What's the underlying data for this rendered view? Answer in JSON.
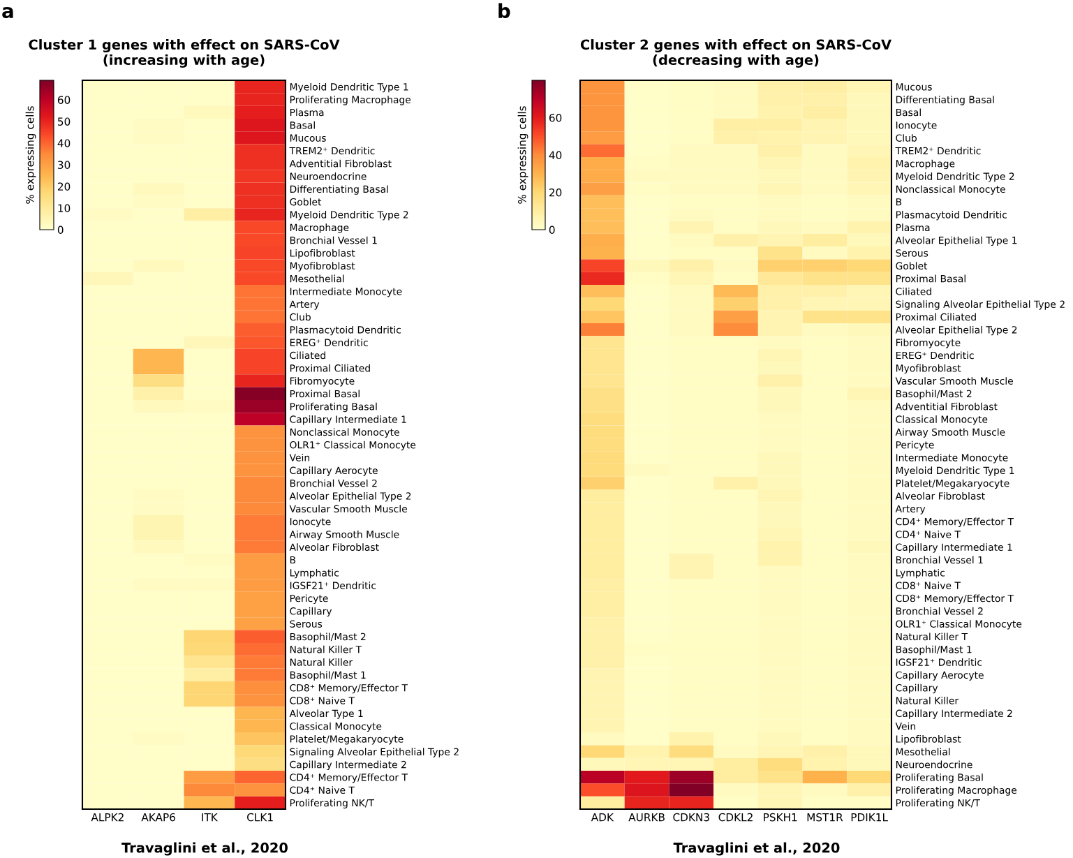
{
  "chart_data": [
    {
      "type": "heatmap",
      "title": "Cluster 1 genes with effect on SARS-CoV\n(increasing with age)",
      "clabel": "% expressing cells",
      "clim": [
        0,
        69
      ],
      "cticks": [
        0,
        10,
        20,
        30,
        40,
        50,
        60
      ],
      "annotations": [
        "a",
        "Travaglini et al., 2020"
      ],
      "categories": [
        "ALPK2",
        "AKAP6",
        "ITK",
        "CLK1"
      ],
      "y_categories": [
        "Myeloid Dendritic Type 1",
        "Proliferating Macrophage",
        "Plasma",
        "Basal",
        "Mucous",
        "TREM2⁺ Dendritic",
        "Adventitial Fibroblast",
        "Neuroendocrine",
        "Differentiating Basal",
        "Goblet",
        "Myeloid Dendritic Type 2",
        "Macrophage",
        "Bronchial Vessel 1",
        "Lipofibroblast",
        "Myofibroblast",
        "Mesothelial",
        "Intermediate Monocyte",
        "Artery",
        "Club",
        "Plasmacytoid Dendritic",
        "EREG⁺ Dendritic",
        "Ciliated",
        "Proximal Ciliated",
        "Fibromyocyte",
        "Proximal Basal",
        "Proliferating Basal",
        "Capillary Intermediate 1",
        "Nonclassical Monocyte",
        "OLR1⁺ Classical Monocyte",
        "Vein",
        "Capillary Aerocyte",
        "Bronchial Vessel 2",
        "Alveolar Epithelial Type 2",
        "Vascular Smooth Muscle",
        "Ionocyte",
        "Airway Smooth Muscle",
        "Alveolar Fibroblast",
        "B",
        "Lymphatic",
        "IGSF21⁺ Dendritic",
        "Pericyte",
        "Capillary",
        "Serous",
        "Basophil/Mast 2",
        "Natural Killer T",
        "Natural Killer",
        "Basophil/Mast 1",
        "CD8⁺ Memory/Effector T",
        "CD8⁺ Naive T",
        "Alveolar Type 1",
        "Classical Monocyte",
        "Platelet/Megakaryocyte",
        "Signaling Alveolar Epithelial Type 2",
        "Capillary Intermediate 2",
        "CD4⁺ Memory/Effector T",
        "CD4⁺ Naive T",
        "Proliferating NK/T"
      ],
      "cells": [
        [
          1,
          1,
          1,
          50
        ],
        [
          1,
          1,
          1,
          50
        ],
        [
          1,
          1,
          3,
          51
        ],
        [
          1,
          2,
          1,
          53
        ],
        [
          1,
          2,
          1,
          53
        ],
        [
          1,
          1,
          1,
          48
        ],
        [
          1,
          1,
          1,
          48
        ],
        [
          1,
          1,
          1,
          47
        ],
        [
          1,
          3,
          1,
          48
        ],
        [
          1,
          2,
          1,
          48
        ],
        [
          2,
          1,
          8,
          50
        ],
        [
          1,
          1,
          1,
          44
        ],
        [
          1,
          1,
          1,
          44
        ],
        [
          1,
          1,
          1,
          45
        ],
        [
          1,
          3,
          1,
          44
        ],
        [
          4,
          1,
          1,
          44
        ],
        [
          1,
          1,
          1,
          38
        ],
        [
          1,
          1,
          1,
          38
        ],
        [
          1,
          1,
          1,
          38
        ],
        [
          1,
          1,
          1,
          41
        ],
        [
          1,
          1,
          4,
          42
        ],
        [
          1,
          25,
          1,
          45
        ],
        [
          1,
          25,
          1,
          45
        ],
        [
          1,
          15,
          1,
          50
        ],
        [
          1,
          7,
          1,
          68
        ],
        [
          1,
          3,
          2,
          65
        ],
        [
          1,
          1,
          1,
          60
        ],
        [
          1,
          1,
          1,
          33
        ],
        [
          1,
          1,
          1,
          33
        ],
        [
          1,
          1,
          1,
          33
        ],
        [
          1,
          1,
          1,
          33
        ],
        [
          1,
          1,
          1,
          35
        ],
        [
          1,
          2,
          1,
          35
        ],
        [
          1,
          2,
          1,
          35
        ],
        [
          1,
          5,
          1,
          37
        ],
        [
          1,
          5,
          1,
          37
        ],
        [
          1,
          3,
          1,
          37
        ],
        [
          1,
          1,
          2,
          31
        ],
        [
          1,
          1,
          1,
          31
        ],
        [
          1,
          2,
          2,
          31
        ],
        [
          1,
          1,
          1,
          30
        ],
        [
          1,
          1,
          1,
          30
        ],
        [
          1,
          1,
          1,
          30
        ],
        [
          1,
          1,
          18,
          41
        ],
        [
          1,
          1,
          17,
          39
        ],
        [
          1,
          1,
          12,
          37
        ],
        [
          1,
          1,
          8,
          37
        ],
        [
          1,
          1,
          18,
          34
        ],
        [
          1,
          1,
          18,
          33
        ],
        [
          1,
          1,
          1,
          25
        ],
        [
          1,
          1,
          1,
          25
        ],
        [
          1,
          2,
          1,
          22
        ],
        [
          1,
          1,
          1,
          17
        ],
        [
          1,
          1,
          1,
          15
        ],
        [
          1,
          1,
          31,
          40
        ],
        [
          1,
          1,
          35,
          33
        ],
        [
          1,
          1,
          25,
          51
        ]
      ]
    },
    {
      "type": "heatmap",
      "title": "Cluster 2 genes with effect on SARS-CoV\n(decreasing with age)",
      "clabel": "% expressing cells",
      "clim": [
        0,
        80
      ],
      "cticks": [
        0,
        20,
        40,
        60
      ],
      "annotations": [
        "b",
        "Travaglini et al., 2020"
      ],
      "categories": [
        "ADK",
        "AURKB",
        "CDKN3",
        "CDKL2",
        "PSKH1",
        "MST1R",
        "PDIK1L"
      ],
      "y_categories": [
        "Mucous",
        "Differentiating Basal",
        "Basal",
        "Ionocyte",
        "Club",
        "TREM2⁺ Dendritic",
        "Macrophage",
        "Myeloid Dendritic Type 2",
        "Nonclassical Monocyte",
        "B",
        "Plasmacytoid Dendritic",
        "Plasma",
        "Alveolar Epithelial Type 1",
        "Serous",
        "Goblet",
        "Proximal Basal",
        "Ciliated",
        "Signaling Alveolar Epithelial Type 2",
        "Proximal Ciliated",
        "Alveolar Epithelial Type 2",
        "Fibromyocyte",
        "EREG⁺ Dendritic",
        "Myofibroblast",
        "Vascular Smooth Muscle",
        "Basophil/Mast 2",
        "Adventitial Fibroblast",
        "Classical Monocyte",
        "Airway Smooth Muscle",
        "Pericyte",
        "Intermediate Monocyte",
        "Myeloid Dendritic Type 1",
        "Platelet/Megakaryocyte",
        "Alveolar Fibroblast",
        "Artery",
        "CD4⁺ Memory/Effector T",
        "CD4⁺ Naive T",
        "Capillary Intermediate 1",
        "Bronchial Vessel 1",
        "Lymphatic",
        "CD8⁺ Naive T",
        "CD8⁺ Memory/Effector T",
        "Bronchial Vessel 2",
        "OLR1⁺ Classical Monocyte",
        "Natural Killer T",
        "Basophil/Mast 1",
        "IGSF21⁺ Dendritic",
        "Capillary Aerocyte",
        "Capillary",
        "Natural Killer",
        "Capillary Intermediate 2",
        "Vein",
        "Lipofibroblast",
        "Mesothelial",
        "Neuroendocrine",
        "Proliferating Basal",
        "Proliferating Macrophage",
        "Proliferating NK/T"
      ],
      "cells": [
        [
          38,
          1,
          2,
          3,
          8,
          9,
          5
        ],
        [
          38,
          1,
          2,
          3,
          8,
          8,
          4
        ],
        [
          38,
          1,
          2,
          3,
          7,
          9,
          4
        ],
        [
          38,
          1,
          2,
          9,
          9,
          6,
          4
        ],
        [
          36,
          1,
          2,
          8,
          7,
          6,
          4
        ],
        [
          45,
          1,
          3,
          3,
          8,
          3,
          5
        ],
        [
          32,
          2,
          3,
          3,
          5,
          3,
          7
        ],
        [
          32,
          3,
          3,
          3,
          4,
          3,
          6
        ],
        [
          35,
          2,
          3,
          3,
          5,
          3,
          5
        ],
        [
          27,
          1,
          2,
          2,
          3,
          2,
          3
        ],
        [
          27,
          1,
          3,
          2,
          3,
          2,
          3
        ],
        [
          27,
          1,
          6,
          2,
          4,
          3,
          7
        ],
        [
          31,
          1,
          3,
          8,
          6,
          10,
          4
        ],
        [
          30,
          1,
          2,
          2,
          15,
          3,
          7
        ],
        [
          52,
          4,
          8,
          3,
          22,
          22,
          20
        ],
        [
          57,
          2,
          5,
          2,
          12,
          15,
          15
        ],
        [
          27,
          1,
          3,
          28,
          8,
          8,
          5
        ],
        [
          20,
          1,
          3,
          22,
          8,
          5,
          5
        ],
        [
          25,
          1,
          3,
          35,
          6,
          15,
          15
        ],
        [
          42,
          1,
          3,
          40,
          6,
          3,
          4
        ],
        [
          14,
          1,
          2,
          2,
          3,
          2,
          3
        ],
        [
          14,
          1,
          2,
          2,
          5,
          2,
          3
        ],
        [
          14,
          1,
          2,
          2,
          4,
          2,
          3
        ],
        [
          14,
          1,
          2,
          2,
          8,
          2,
          3
        ],
        [
          16,
          1,
          2,
          2,
          4,
          2,
          5
        ],
        [
          16,
          1,
          2,
          2,
          4,
          2,
          3
        ],
        [
          18,
          1,
          2,
          2,
          3,
          2,
          3
        ],
        [
          18,
          1,
          2,
          2,
          3,
          2,
          3
        ],
        [
          18,
          1,
          2,
          2,
          3,
          2,
          3
        ],
        [
          19,
          1,
          2,
          2,
          4,
          2,
          3
        ],
        [
          19,
          3,
          2,
          2,
          4,
          2,
          3
        ],
        [
          22,
          1,
          2,
          8,
          4,
          2,
          3
        ],
        [
          10,
          1,
          2,
          2,
          5,
          2,
          3
        ],
        [
          10,
          1,
          2,
          2,
          4,
          2,
          3
        ],
        [
          10,
          1,
          2,
          2,
          4,
          2,
          3
        ],
        [
          10,
          1,
          2,
          2,
          5,
          2,
          3
        ],
        [
          10,
          1,
          2,
          2,
          7,
          2,
          4
        ],
        [
          10,
          1,
          6,
          2,
          7,
          2,
          3
        ],
        [
          10,
          1,
          6,
          2,
          3,
          2,
          3
        ],
        [
          9,
          1,
          2,
          2,
          3,
          2,
          3
        ],
        [
          9,
          1,
          2,
          2,
          3,
          2,
          3
        ],
        [
          9,
          1,
          2,
          2,
          3,
          2,
          3
        ],
        [
          8,
          1,
          2,
          2,
          3,
          2,
          3
        ],
        [
          8,
          1,
          2,
          2,
          3,
          2,
          3
        ],
        [
          8,
          2,
          2,
          2,
          3,
          2,
          3
        ],
        [
          8,
          1,
          2,
          2,
          3,
          2,
          3
        ],
        [
          6,
          1,
          2,
          2,
          3,
          2,
          3
        ],
        [
          6,
          1,
          2,
          2,
          3,
          2,
          3
        ],
        [
          6,
          1,
          2,
          2,
          3,
          2,
          3
        ],
        [
          6,
          1,
          2,
          2,
          3,
          2,
          3
        ],
        [
          6,
          1,
          2,
          2,
          3,
          2,
          3
        ],
        [
          3,
          1,
          7,
          2,
          4,
          2,
          3
        ],
        [
          20,
          7,
          18,
          3,
          5,
          8,
          4
        ],
        [
          4,
          5,
          5,
          10,
          18,
          7,
          4
        ],
        [
          70,
          60,
          75,
          10,
          15,
          30,
          20
        ],
        [
          50,
          62,
          80,
          3,
          5,
          3,
          8
        ],
        [
          10,
          58,
          58,
          2,
          5,
          2,
          2
        ]
      ]
    }
  ]
}
